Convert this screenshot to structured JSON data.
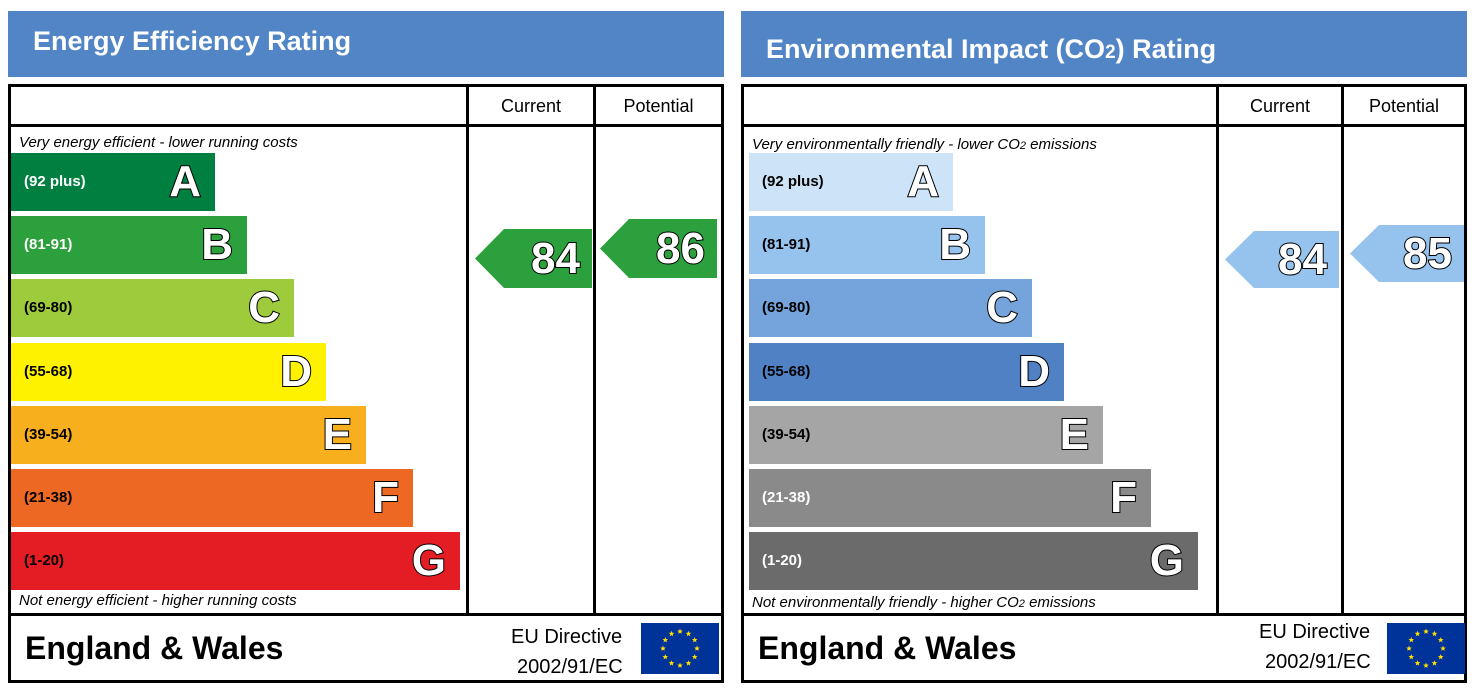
{
  "chart_data": [
    {
      "type": "energy-rating",
      "title": "Energy Efficiency Rating",
      "columns": [
        "Current",
        "Potential"
      ],
      "top_caption": "Very energy efficient - lower running costs",
      "bottom_caption": "Not energy efficient - higher running costs",
      "bands": [
        {
          "letter": "A",
          "range": "(92 plus)",
          "color": "#008040",
          "text_color": "#ffffff"
        },
        {
          "letter": "B",
          "range": "(81-91)",
          "color": "#2ca03c",
          "text_color": "#ffffff"
        },
        {
          "letter": "C",
          "range": "(69-80)",
          "color": "#9dcb3c",
          "text_color": "#000000"
        },
        {
          "letter": "D",
          "range": "(55-68)",
          "color": "#fff200",
          "text_color": "#000000"
        },
        {
          "letter": "E",
          "range": "(39-54)",
          "color": "#f7af1d",
          "text_color": "#000000"
        },
        {
          "letter": "F",
          "range": "(21-38)",
          "color": "#ed6823",
          "text_color": "#000000"
        },
        {
          "letter": "G",
          "range": "(1-20)",
          "color": "#e31d23",
          "text_color": "#000000"
        }
      ],
      "current": {
        "value": 84,
        "band": "B",
        "color": "#2ca03c"
      },
      "potential": {
        "value": 86,
        "band": "B",
        "color": "#2ca03c"
      },
      "footer": {
        "region": "England & Wales",
        "directive_line1": "EU Directive",
        "directive_line2": "2002/91/EC"
      }
    },
    {
      "type": "energy-rating",
      "title_prefix": "Environmental Impact (CO",
      "title_sub": "2",
      "title_suffix": ") Rating",
      "columns": [
        "Current",
        "Potential"
      ],
      "top_caption_prefix": "Very environmentally friendly - lower CO",
      "top_caption_sub": "2",
      "top_caption_suffix": " emissions",
      "bottom_caption_prefix": "Not environmentally friendly - higher CO",
      "bottom_caption_sub": "2",
      "bottom_caption_suffix": " emissions",
      "bands": [
        {
          "letter": "A",
          "range": "(92 plus)",
          "color": "#cde3f7",
          "text_color": "#000000"
        },
        {
          "letter": "B",
          "range": "(81-91)",
          "color": "#96c2ee",
          "text_color": "#000000"
        },
        {
          "letter": "C",
          "range": "(69-80)",
          "color": "#74a4db",
          "text_color": "#000000"
        },
        {
          "letter": "D",
          "range": "(55-68)",
          "color": "#4f81c4",
          "text_color": "#000000"
        },
        {
          "letter": "E",
          "range": "(39-54)",
          "color": "#a5a5a5",
          "text_color": "#000000"
        },
        {
          "letter": "F",
          "range": "(21-38)",
          "color": "#8a8a8a",
          "text_color": "#ffffff"
        },
        {
          "letter": "G",
          "range": "(1-20)",
          "color": "#6b6b6b",
          "text_color": "#ffffff"
        }
      ],
      "current": {
        "value": 84,
        "band": "B",
        "color": "#96c2ee"
      },
      "potential": {
        "value": 85,
        "band": "B",
        "color": "#96c2ee"
      },
      "footer": {
        "region": "England & Wales",
        "directive_line1": "EU Directive",
        "directive_line2": "2002/91/EC"
      }
    }
  ],
  "colors": {
    "banner": "#5285c6",
    "eu_flag_blue": "#003399",
    "eu_flag_star": "#ffdd00"
  },
  "icons": {
    "eu_flag": "eu-flag-icon"
  }
}
